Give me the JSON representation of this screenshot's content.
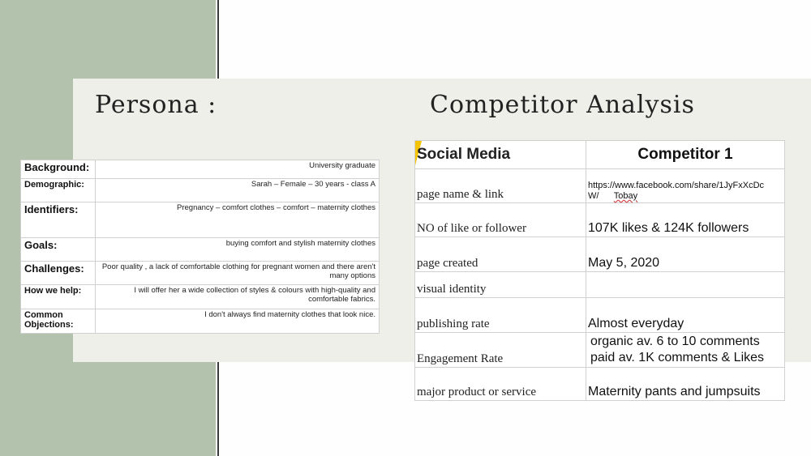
{
  "persona": {
    "title": "Persona :",
    "rows": [
      {
        "label": "Background:",
        "value": "University  graduate"
      },
      {
        "label": "Demographic:",
        "value": "Sarah – Female  – 30 years -  class A"
      },
      {
        "label": "Identifiers:",
        "value": "Pregnancy  – comfort clothes  – comfort – maternity clothes"
      },
      {
        "label": "Goals:",
        "value": "buying  comfort and stylish maternity clothes"
      },
      {
        "label": "Challenges:",
        "value": "Poor quality  , a lack of comfortable clothing  for pregnant  women and there aren't many  options"
      },
      {
        "label": "How we help:",
        "value": "I will offer her a wide collection  of styles & colours with high-quality  and comfortable  fabrics."
      },
      {
        "label": "Common Objections:",
        "value": "I don't always find maternity clothes  that look nice."
      }
    ]
  },
  "competitor": {
    "title": "Competitor Analysis",
    "header": {
      "label": "Social Media",
      "value": "Competitor  1"
    },
    "rows": [
      {
        "label": "page name & link",
        "value": "https://www.facebook.com/share/1JyFxXcDcW/",
        "value2": "Tobay"
      },
      {
        "label": "NO of like  or follower",
        "value": "107K  likes & 124K followers"
      },
      {
        "label": "page created",
        "value": "May 5, 2020"
      },
      {
        "label": "visual  identity",
        "value": ""
      },
      {
        "label": "publishing  rate",
        "value": "Almost everyday"
      },
      {
        "label": "Engagement Rate",
        "value": "organic av. 6 to 10 comments",
        "value2": "paid av.  1K comments & Likes"
      },
      {
        "label": "major product or service",
        "value": "Maternity pants and jumpsuits"
      }
    ]
  },
  "colors": {
    "panel": "#b3c2ad",
    "card": "#efefea",
    "accent": "#f5c400"
  }
}
